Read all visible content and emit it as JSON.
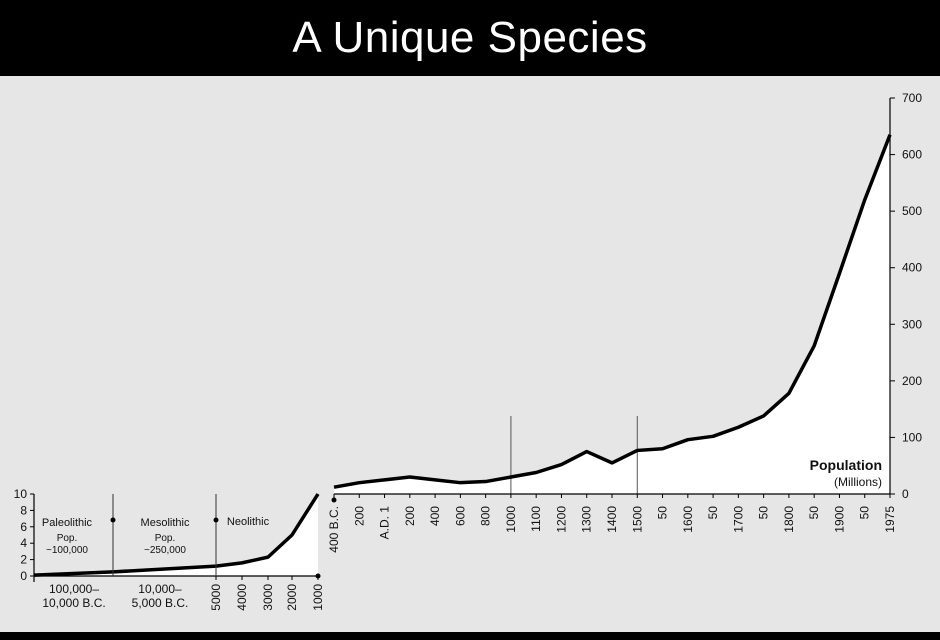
{
  "title": "A Unique Species",
  "colors": {
    "background": "#e6e6e6",
    "title_bar": "#000000",
    "title_text": "#ffffff",
    "line": "#000000",
    "fill": "#ffffff"
  },
  "chart_data": [
    {
      "type": "area",
      "title": "",
      "ylabel": "",
      "ylim": [
        0,
        10
      ],
      "yticks": [
        "10",
        "8",
        "6",
        "4",
        "2",
        "0"
      ],
      "x_labels": [
        "100,000–\n10,000 B.C.",
        "10,000–\n5,000 B.C.",
        "5000",
        "4000",
        "3000",
        "2000",
        "1000"
      ],
      "eras": [
        {
          "name": "Paleolithic",
          "pop_label": "Pop.",
          "pop_value": "~100,000"
        },
        {
          "name": "Mesolithic",
          "pop_label": "Pop.",
          "pop_value": "~250,000"
        },
        {
          "name": "Neolithic",
          "pop_label": "",
          "pop_value": ""
        }
      ],
      "x": [
        "100,000 B.C.",
        "10,000 B.C.",
        "5000 B.C.",
        "4000 B.C.",
        "3000 B.C.",
        "2000 B.C.",
        "1000 B.C."
      ],
      "values": [
        0.1,
        0.5,
        1.2,
        1.6,
        2.3,
        5.0,
        10.0
      ]
    },
    {
      "type": "area",
      "title": "",
      "ylabel": "Population",
      "yunit": "(Millions)",
      "ylim": [
        0,
        700
      ],
      "yticks": [
        "700",
        "600",
        "500",
        "400",
        "300",
        "200",
        "100",
        "0"
      ],
      "x_labels": [
        "400 B.C.",
        "200",
        "A.D. 1",
        "200",
        "400",
        "600",
        "800",
        "1000",
        "1100",
        "1200",
        "1300",
        "1400",
        "1500",
        "50",
        "1600",
        "50",
        "1700",
        "50",
        "1800",
        "50",
        "1900",
        "50",
        "1975"
      ],
      "x": [
        "400 B.C.",
        "200 B.C.",
        "A.D. 1",
        "200",
        "400",
        "600",
        "800",
        "1000",
        "1100",
        "1200",
        "1300",
        "1400",
        "1500",
        "1550",
        "1600",
        "1650",
        "1700",
        "1750",
        "1800",
        "1850",
        "1900",
        "1950",
        "1975"
      ],
      "values": [
        12,
        20,
        25,
        30,
        25,
        20,
        22,
        30,
        38,
        52,
        75,
        55,
        77,
        80,
        96,
        102,
        118,
        138,
        178,
        262,
        390,
        520,
        635
      ],
      "markers": [
        "1000",
        "1500"
      ]
    }
  ]
}
